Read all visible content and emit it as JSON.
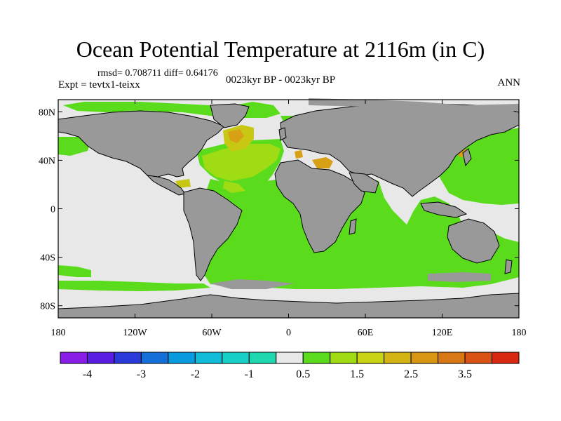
{
  "title": "Ocean Potential Temperature at 2116m (in C)",
  "stats_line": "rmsd= 0.708711 diff= 0.64176",
  "experiment": "Expt = tevtx1-teixx",
  "period": "0023kyr BP - 0023kyr BP",
  "season": "ANN",
  "lat_ticks": [
    {
      "label": "80N",
      "lat": 80
    },
    {
      "label": "40N",
      "lat": 40
    },
    {
      "label": "0",
      "lat": 0
    },
    {
      "label": "40S",
      "lat": -40
    },
    {
      "label": "80S",
      "lat": -80
    }
  ],
  "lon_ticks": [
    {
      "label": "180",
      "lon": -180
    },
    {
      "label": "120W",
      "lon": -120
    },
    {
      "label": "60W",
      "lon": -60
    },
    {
      "label": "0",
      "lon": 0
    },
    {
      "label": "60E",
      "lon": 60
    },
    {
      "label": "120E",
      "lon": 120
    },
    {
      "label": "180",
      "lon": 180
    }
  ],
  "colorbar": {
    "colors": [
      "#8a1ce8",
      "#5a1ce0",
      "#2a3ad8",
      "#1470d8",
      "#0a9ae0",
      "#10bcd8",
      "#18d0c8",
      "#20d8b0",
      "#e8e8e8",
      "#5adc1c",
      "#a0dc14",
      "#c8d414",
      "#d4b414",
      "#d89614",
      "#d87814",
      "#d85214",
      "#d82810"
    ],
    "labels": [
      {
        "text": "-4",
        "after_box": 1
      },
      {
        "text": "-3",
        "after_box": 3
      },
      {
        "text": "-2",
        "after_box": 5
      },
      {
        "text": "-1",
        "after_box": 7
      },
      {
        "text": "0.5",
        "after_box": 9
      },
      {
        "text": "1.5",
        "after_box": 11
      },
      {
        "text": "2.5",
        "after_box": 13
      },
      {
        "text": "3.5",
        "after_box": 15
      }
    ]
  },
  "colors": {
    "land": "#999999",
    "ocean_neutral": "#e8e8e8",
    "warm_green": "#5adc1c",
    "yellow_green": "#a0dc14",
    "yellow": "#c8c814",
    "orange": "#d8a014"
  }
}
